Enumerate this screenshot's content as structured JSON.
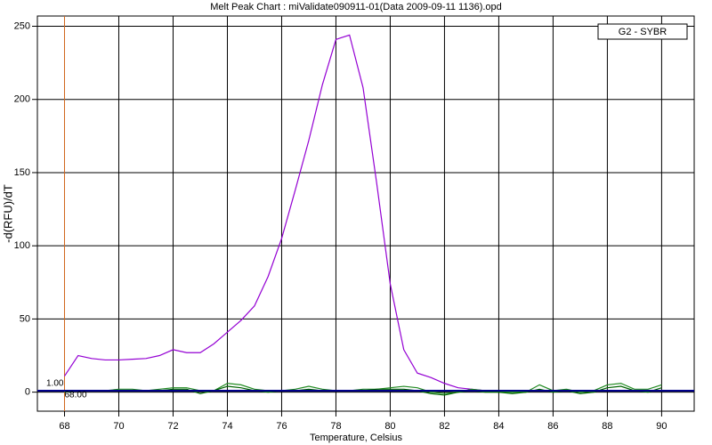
{
  "chart_data": {
    "type": "line",
    "title": "Melt Peak Chart : miValidate090911-01(Data 2009-09-11 1136).opd",
    "xlabel": "Temperature, Celsius",
    "ylabel": "-d(RFU)/dT",
    "xlim": [
      67,
      91.2
    ],
    "ylim": [
      -13,
      257
    ],
    "xticks": [
      68,
      70,
      72,
      74,
      76,
      78,
      80,
      82,
      84,
      86,
      88,
      90
    ],
    "yticks": [
      0,
      50,
      100,
      150,
      200,
      250
    ],
    "grid": true,
    "legend": "upper right",
    "threshold": {
      "value": 1,
      "label": "1.00",
      "color": "#00008b"
    },
    "marker": {
      "value": 68,
      "label": "68.00",
      "color": "#d2691e"
    },
    "x": [
      68,
      68.5,
      69,
      69.5,
      70,
      70.5,
      71,
      71.5,
      72,
      72.5,
      73,
      73.5,
      74,
      74.5,
      75,
      75.5,
      76,
      76.5,
      77,
      77.5,
      78,
      78.5,
      79,
      79.5,
      80,
      80.5,
      81,
      81.5,
      82,
      82.5,
      83,
      83.5,
      84,
      84.5,
      85,
      85.5,
      86,
      86.5,
      87,
      87.5,
      88,
      88.5,
      89,
      89.5,
      90
    ],
    "series": [
      {
        "name": "G2 - SYBR",
        "color": "#9400d3",
        "values": [
          11,
          25,
          23,
          22,
          22,
          22.5,
          23,
          25,
          29,
          27,
          27,
          33,
          41,
          49,
          59,
          79,
          105,
          138,
          172,
          210,
          241,
          244,
          208,
          143,
          74,
          29,
          13,
          10,
          6,
          3,
          2,
          1,
          1,
          1,
          1,
          1,
          1,
          1,
          1,
          1,
          1,
          1,
          1,
          1,
          1
        ]
      },
      {
        "color": "#228b22",
        "values": [
          1,
          1,
          1,
          1,
          2,
          2,
          1,
          2,
          3,
          3,
          1,
          1,
          6,
          5,
          2,
          1,
          1,
          2,
          4,
          2,
          1,
          1,
          2,
          2,
          3,
          4,
          3,
          0,
          -1,
          0,
          2,
          1,
          0,
          0,
          0,
          5,
          1,
          2,
          0,
          1,
          5,
          6,
          2,
          2,
          5
        ]
      },
      {
        "color": "#006400",
        "values": [
          0,
          1,
          1,
          1,
          1,
          1,
          1,
          1,
          2,
          2,
          -1,
          1,
          4,
          3,
          1,
          0,
          1,
          1,
          2,
          1,
          1,
          1,
          1,
          2,
          2,
          2,
          1,
          -1,
          -2,
          0,
          1,
          0,
          0,
          -1,
          0,
          2,
          0,
          1,
          -1,
          0,
          3,
          4,
          1,
          0,
          3
        ]
      }
    ]
  }
}
